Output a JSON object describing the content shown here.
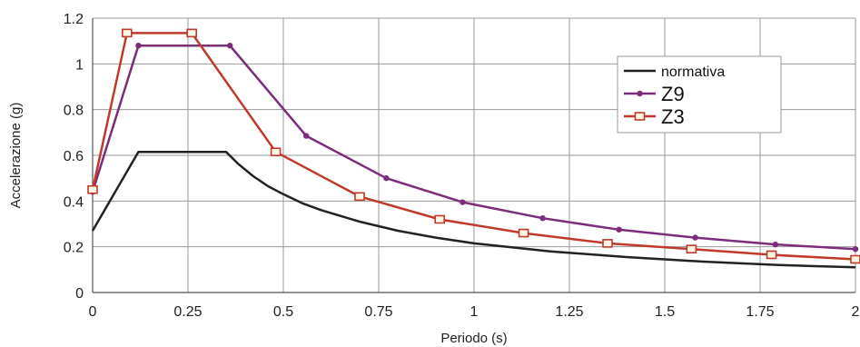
{
  "chart_data": {
    "type": "line",
    "title": "",
    "xlabel": "Periodo (s)",
    "ylabel": "Accelerazione (g)",
    "xlim": [
      0,
      2
    ],
    "ylim": [
      0,
      1.2
    ],
    "x_ticks": [
      0,
      0.25,
      0.5,
      0.75,
      1,
      1.25,
      1.5,
      1.75,
      2
    ],
    "x_tick_labels": [
      "0",
      "0.25",
      "0.5",
      "0.75",
      "1",
      "1.25",
      "1.5",
      "1.75",
      "2"
    ],
    "y_ticks": [
      0,
      0.2,
      0.4,
      0.6,
      0.8,
      1,
      1.2
    ],
    "y_tick_labels": [
      "0",
      "0.2",
      "0.4",
      "0.6",
      "0.8",
      "1",
      "1.2"
    ],
    "grid": true,
    "legend_position": "right",
    "series": [
      {
        "name": "normativa",
        "color": "#222222",
        "marker": "none",
        "x": [
          0,
          0.12,
          0.35,
          0.38,
          0.42,
          0.46,
          0.5,
          0.55,
          0.6,
          0.7,
          0.8,
          0.9,
          1.0,
          1.2,
          1.4,
          1.6,
          1.8,
          2.0
        ],
        "y": [
          0.27,
          0.615,
          0.615,
          0.565,
          0.51,
          0.465,
          0.43,
          0.39,
          0.36,
          0.31,
          0.27,
          0.24,
          0.215,
          0.18,
          0.155,
          0.135,
          0.12,
          0.11
        ]
      },
      {
        "name": "Z9",
        "color": "#7b2d7b",
        "marker": "dot",
        "x": [
          0,
          0.12,
          0.36,
          0.56,
          0.77,
          0.97,
          1.18,
          1.38,
          1.58,
          1.79,
          2.0
        ],
        "y": [
          0.44,
          1.08,
          1.08,
          0.685,
          0.5,
          0.395,
          0.325,
          0.275,
          0.24,
          0.21,
          0.19
        ]
      },
      {
        "name": "Z3",
        "color": "#c0392b",
        "marker": "square",
        "x": [
          0,
          0.09,
          0.26,
          0.48,
          0.7,
          0.91,
          1.13,
          1.35,
          1.57,
          1.78,
          2.0
        ],
        "y": [
          0.45,
          1.135,
          1.135,
          0.615,
          0.42,
          0.32,
          0.26,
          0.215,
          0.19,
          0.165,
          0.145
        ]
      }
    ]
  }
}
